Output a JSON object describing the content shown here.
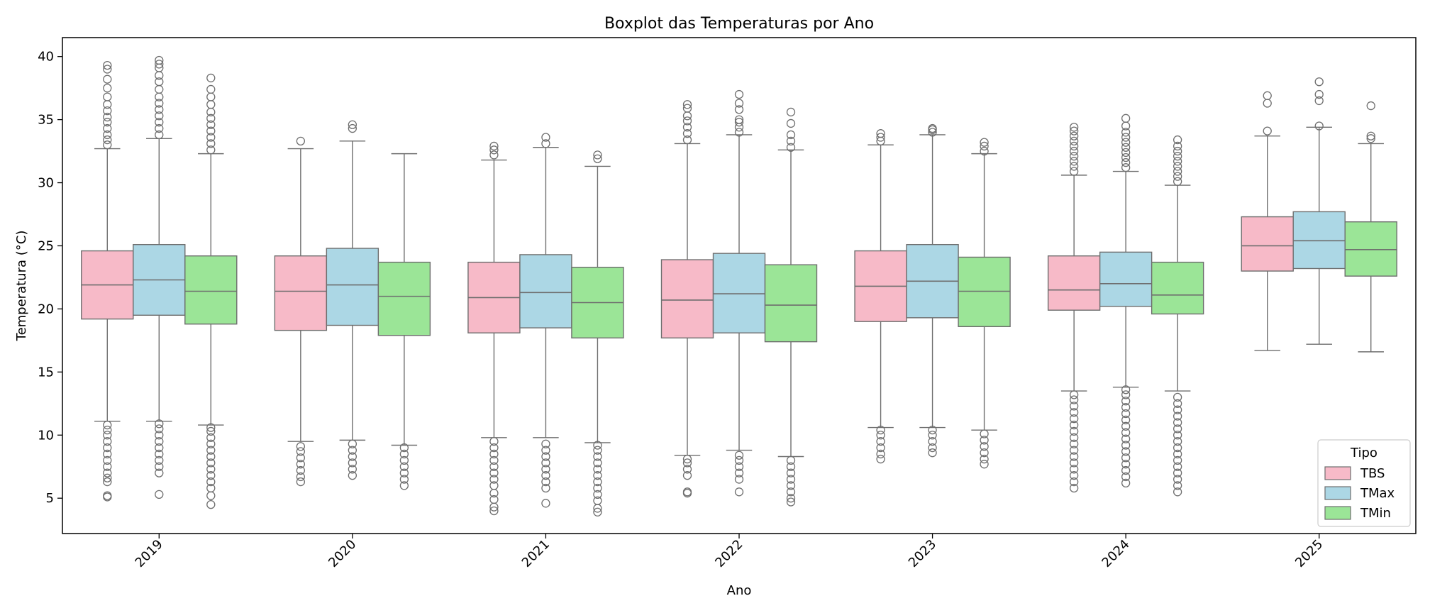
{
  "chart_data": {
    "type": "boxplot",
    "title": "Boxplot das Temperaturas por Ano",
    "xlabel": "Ano",
    "ylabel": "Temperatura (°C)",
    "ylim": [
      2.2,
      41.5
    ],
    "yticks": [
      5,
      10,
      15,
      20,
      25,
      30,
      35,
      40
    ],
    "categories": [
      "2019",
      "2020",
      "2021",
      "2022",
      "2023",
      "2024",
      "2025"
    ],
    "legend": {
      "title": "Tipo",
      "position": "lower-right"
    },
    "colors": {
      "TBS": "#f7bac8",
      "TMax": "#acd7e5",
      "TMin": "#9be597",
      "line": "#6e6e6e"
    },
    "series": [
      {
        "name": "TBS",
        "boxes": [
          {
            "q1": 19.2,
            "median": 21.9,
            "q3": 24.6,
            "whislo": 11.1,
            "whishi": 32.7,
            "fliers": [
              5.1,
              5.2,
              6.3,
              6.6,
              7.0,
              7.5,
              8.0,
              8.5,
              9.0,
              9.5,
              10.0,
              10.4,
              10.8,
              33.0,
              33.4,
              33.8,
              34.3,
              34.8,
              35.2,
              35.7,
              36.2,
              36.8,
              37.5,
              38.2,
              39.0,
              39.3
            ]
          },
          {
            "q1": 18.3,
            "median": 21.4,
            "q3": 24.2,
            "whislo": 9.5,
            "whishi": 32.7,
            "fliers": [
              6.3,
              6.7,
              7.2,
              7.7,
              8.2,
              8.7,
              9.1,
              33.3
            ]
          },
          {
            "q1": 18.1,
            "median": 20.9,
            "q3": 23.7,
            "whislo": 9.8,
            "whishi": 31.8,
            "fliers": [
              4.0,
              4.3,
              4.9,
              5.4,
              6.0,
              6.5,
              7.0,
              7.5,
              8.0,
              8.5,
              9.0,
              9.5,
              32.2,
              32.6,
              32.9
            ]
          },
          {
            "q1": 17.7,
            "median": 20.7,
            "q3": 23.9,
            "whislo": 8.4,
            "whishi": 33.1,
            "fliers": [
              5.4,
              5.5,
              6.8,
              7.3,
              7.8,
              8.1,
              33.4,
              33.9,
              34.4,
              34.9,
              35.3,
              35.9,
              36.2
            ]
          },
          {
            "q1": 19.0,
            "median": 21.8,
            "q3": 24.6,
            "whislo": 10.6,
            "whishi": 33.0,
            "fliers": [
              8.1,
              8.5,
              9.0,
              9.5,
              10.0,
              10.4,
              33.3,
              33.6,
              33.9
            ]
          },
          {
            "q1": 19.9,
            "median": 21.5,
            "q3": 24.2,
            "whislo": 13.5,
            "whishi": 30.6,
            "fliers": [
              5.8,
              6.3,
              6.8,
              7.3,
              7.8,
              8.3,
              8.8,
              9.3,
              9.8,
              10.3,
              10.8,
              11.3,
              11.8,
              12.3,
              12.8,
              13.2,
              30.9,
              31.3,
              31.7,
              32.1,
              32.5,
              32.9,
              33.3,
              33.7,
              34.1,
              34.4
            ]
          },
          {
            "q1": 23.0,
            "median": 25.0,
            "q3": 27.3,
            "whislo": 16.7,
            "whishi": 33.7,
            "fliers": [
              34.1,
              36.3,
              36.9
            ]
          }
        ]
      },
      {
        "name": "TMax",
        "boxes": [
          {
            "q1": 19.5,
            "median": 22.3,
            "q3": 25.1,
            "whislo": 11.1,
            "whishi": 33.5,
            "fliers": [
              5.3,
              7.0,
              7.5,
              8.0,
              8.5,
              9.0,
              9.5,
              10.0,
              10.5,
              10.9,
              33.8,
              34.3,
              34.8,
              35.3,
              35.8,
              36.3,
              36.8,
              37.4,
              38.0,
              38.5,
              39.1,
              39.4,
              39.7
            ]
          },
          {
            "q1": 18.7,
            "median": 21.9,
            "q3": 24.8,
            "whislo": 9.6,
            "whishi": 33.3,
            "fliers": [
              6.8,
              7.3,
              7.8,
              8.3,
              8.8,
              9.3,
              34.3,
              34.6
            ]
          },
          {
            "q1": 18.5,
            "median": 21.3,
            "q3": 24.3,
            "whislo": 9.8,
            "whishi": 32.8,
            "fliers": [
              4.6,
              5.8,
              6.3,
              6.8,
              7.3,
              7.8,
              8.3,
              8.8,
              9.3,
              33.1,
              33.6
            ]
          },
          {
            "q1": 18.1,
            "median": 21.2,
            "q3": 24.4,
            "whislo": 8.8,
            "whishi": 33.8,
            "fliers": [
              5.5,
              6.5,
              7.0,
              7.5,
              8.0,
              8.4,
              34.0,
              34.4,
              34.8,
              35.0,
              35.8,
              36.3,
              37.0
            ]
          },
          {
            "q1": 19.3,
            "median": 22.2,
            "q3": 25.1,
            "whislo": 10.6,
            "whishi": 33.8,
            "fliers": [
              8.6,
              9.0,
              9.5,
              10.0,
              10.4,
              34.0,
              34.2,
              34.3
            ]
          },
          {
            "q1": 20.2,
            "median": 22.0,
            "q3": 24.5,
            "whislo": 13.8,
            "whishi": 30.9,
            "fliers": [
              6.2,
              6.7,
              7.2,
              7.7,
              8.2,
              8.7,
              9.2,
              9.7,
              10.2,
              10.7,
              11.2,
              11.7,
              12.2,
              12.7,
              13.2,
              13.6,
              31.2,
              31.6,
              32.0,
              32.4,
              32.8,
              33.2,
              33.6,
              34.0,
              34.5,
              35.1
            ]
          },
          {
            "q1": 23.2,
            "median": 25.4,
            "q3": 27.7,
            "whislo": 17.2,
            "whishi": 34.4,
            "fliers": [
              34.5,
              36.5,
              37.0,
              38.0
            ]
          }
        ]
      },
      {
        "name": "TMin",
        "boxes": [
          {
            "q1": 18.8,
            "median": 21.4,
            "q3": 24.2,
            "whislo": 10.8,
            "whishi": 32.3,
            "fliers": [
              4.5,
              5.2,
              5.8,
              6.3,
              6.8,
              7.3,
              7.8,
              8.3,
              8.8,
              9.3,
              9.8,
              10.3,
              10.6,
              32.6,
              33.1,
              33.6,
              34.1,
              34.6,
              35.1,
              35.6,
              36.2,
              36.8,
              37.4,
              38.3
            ]
          },
          {
            "q1": 17.9,
            "median": 21.0,
            "q3": 23.7,
            "whislo": 9.2,
            "whishi": 32.3,
            "fliers": [
              6.0,
              6.5,
              7.0,
              7.5,
              8.0,
              8.5,
              9.0
            ]
          },
          {
            "q1": 17.7,
            "median": 20.5,
            "q3": 23.3,
            "whislo": 9.4,
            "whishi": 31.3,
            "fliers": [
              3.9,
              4.2,
              4.8,
              5.3,
              5.8,
              6.3,
              6.8,
              7.3,
              7.8,
              8.3,
              8.8,
              9.2,
              31.9,
              32.2
            ]
          },
          {
            "q1": 17.4,
            "median": 20.3,
            "q3": 23.5,
            "whislo": 8.3,
            "whishi": 32.6,
            "fliers": [
              4.7,
              5.0,
              5.5,
              6.0,
              6.5,
              7.0,
              7.5,
              8.0,
              32.8,
              33.3,
              33.8,
              34.7,
              35.6
            ]
          },
          {
            "q1": 18.6,
            "median": 21.4,
            "q3": 24.1,
            "whislo": 10.4,
            "whishi": 32.3,
            "fliers": [
              7.7,
              8.1,
              8.6,
              9.1,
              9.6,
              10.1,
              32.5,
              32.9,
              33.2
            ]
          },
          {
            "q1": 19.6,
            "median": 21.1,
            "q3": 23.7,
            "whislo": 13.5,
            "whishi": 29.8,
            "fliers": [
              5.5,
              6.0,
              6.5,
              7.0,
              7.5,
              8.0,
              8.5,
              9.0,
              9.5,
              10.0,
              10.5,
              11.0,
              11.5,
              12.0,
              12.5,
              13.0,
              30.1,
              30.5,
              30.9,
              31.3,
              31.7,
              32.1,
              32.5,
              32.9,
              33.4
            ]
          },
          {
            "q1": 22.6,
            "median": 24.7,
            "q3": 26.9,
            "whislo": 16.6,
            "whishi": 33.1,
            "fliers": [
              33.5,
              33.7,
              36.1
            ]
          }
        ]
      }
    ]
  }
}
